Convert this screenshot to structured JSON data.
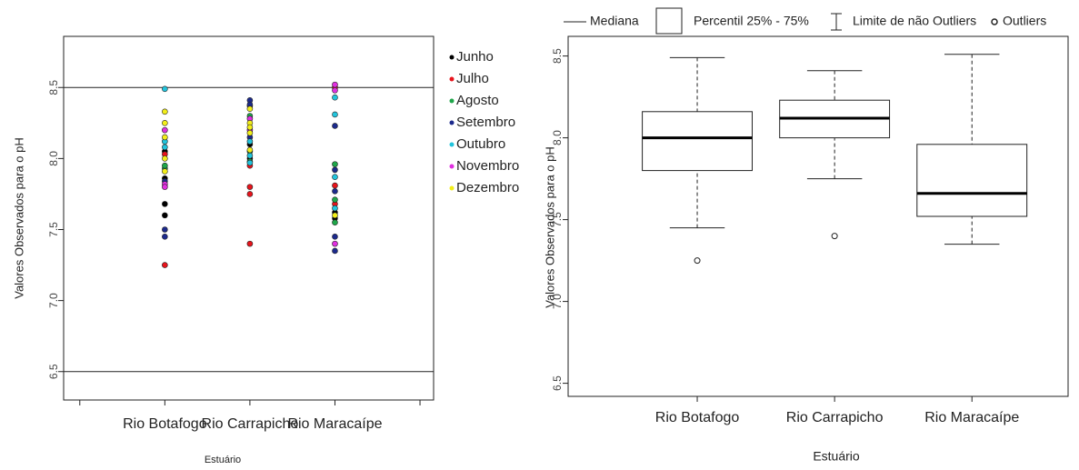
{
  "chart_data": [
    {
      "type": "scatter",
      "ylabel": "Valores Observados para o pH",
      "xlabel": "Estuário",
      "categories": [
        null,
        "Rio Botafogo",
        "Rio Carrapicho",
        "Rio Maracaípe",
        null
      ],
      "xlim": [
        0.81,
        5.16
      ],
      "ylim": [
        6.3,
        8.86
      ],
      "yticks": [
        6.5,
        {
          "value": 7,
          "label": "7.0"
        },
        7.5,
        {
          "value": 8,
          "label": "8.0"
        },
        8.5
      ],
      "hlines": [
        6.5,
        8.5
      ],
      "series": [
        {
          "name": "Junho",
          "color": "#000000",
          "x": [
            "Rio Botafogo",
            "Rio Botafogo",
            "Rio Botafogo",
            "Rio Botafogo",
            "Rio Carrapicho",
            "Rio Carrapicho",
            "Rio Maracaípe",
            "Rio Maracaípe"
          ],
          "values": [
            8.05,
            7.86,
            7.68,
            7.6,
            8.1,
            8.0,
            7.62,
            7.58
          ]
        },
        {
          "name": "Julho",
          "color": "#e8141c",
          "x": [
            "Rio Botafogo",
            "Rio Botafogo",
            "Rio Carrapicho",
            "Rio Carrapicho",
            "Rio Carrapicho",
            "Rio Carrapicho",
            "Rio Carrapicho",
            "Rio Maracaípe",
            "Rio Maracaípe",
            "Rio Maracaípe"
          ],
          "values": [
            7.25,
            8.03,
            7.4,
            7.75,
            7.8,
            7.95,
            8.37,
            8.5,
            7.81,
            7.68
          ]
        },
        {
          "name": "Agosto",
          "color": "#1fa64a",
          "x": [
            "Rio Botafogo",
            "Rio Botafogo",
            "Rio Carrapicho",
            "Rio Carrapicho",
            "Rio Carrapicho",
            "Rio Maracaípe",
            "Rio Maracaípe",
            "Rio Maracaípe"
          ],
          "values": [
            7.93,
            7.95,
            8.3,
            8.05,
            7.98,
            7.96,
            7.71,
            7.55
          ]
        },
        {
          "name": "Setembro",
          "color": "#1c2a8c",
          "x": [
            "Rio Botafogo",
            "Rio Botafogo",
            "Rio Botafogo",
            "Rio Carrapicho",
            "Rio Carrapicho",
            "Rio Carrapicho",
            "Rio Maracaípe",
            "Rio Maracaípe",
            "Rio Maracaípe",
            "Rio Maracaípe",
            "Rio Maracaípe"
          ],
          "values": [
            7.84,
            7.5,
            7.45,
            8.41,
            8.38,
            8.15,
            8.23,
            7.92,
            7.77,
            7.45,
            7.35
          ]
        },
        {
          "name": "Outubro",
          "color": "#22c4dc",
          "x": [
            "Rio Botafogo",
            "Rio Botafogo",
            "Rio Botafogo",
            "Rio Carrapicho",
            "Rio Carrapicho",
            "Rio Carrapicho",
            "Rio Maracaípe",
            "Rio Maracaípe",
            "Rio Maracaípe",
            "Rio Maracaípe"
          ],
          "values": [
            8.49,
            8.12,
            8.08,
            8.12,
            8.02,
            7.97,
            8.43,
            8.31,
            7.87,
            7.65
          ]
        },
        {
          "name": "Novembro",
          "color": "#e030e0",
          "x": [
            "Rio Botafogo",
            "Rio Botafogo",
            "Rio Botafogo",
            "Rio Carrapicho",
            "Rio Carrapicho",
            "Rio Maracaípe",
            "Rio Maracaípe",
            "Rio Maracaípe"
          ],
          "values": [
            8.2,
            7.82,
            7.8,
            8.2,
            8.28,
            8.52,
            8.48,
            7.4
          ]
        },
        {
          "name": "Dezembro",
          "color": "#f2ee1a",
          "x": [
            "Rio Botafogo",
            "Rio Botafogo",
            "Rio Botafogo",
            "Rio Botafogo",
            "Rio Botafogo",
            "Rio Carrapicho",
            "Rio Carrapicho",
            "Rio Carrapicho",
            "Rio Carrapicho",
            "Rio Carrapicho",
            "Rio Maracaípe"
          ],
          "values": [
            8.33,
            8.25,
            8.15,
            8.0,
            7.91,
            8.35,
            8.25,
            8.22,
            8.18,
            8.06,
            7.6
          ]
        }
      ]
    },
    {
      "type": "box",
      "ylabel": "Valores Observados para o pH",
      "xlabel": "Estuário",
      "legend": [
        "Mediana",
        "Percentil 25% - 75%",
        "Limite de não Outliers",
        "Outliers"
      ],
      "categories": [
        "Rio Botafogo",
        "Rio Carrapicho",
        "Rio Maracaípe"
      ],
      "xlim": [
        0.06,
        3.7
      ],
      "ylim": [
        6.42,
        8.62
      ],
      "yticks": [
        6.5,
        {
          "value": 7,
          "label": "7.0"
        },
        7.5,
        {
          "value": 8,
          "label": "8.0"
        },
        8.5
      ],
      "min": [
        7.45,
        7.75,
        7.35
      ],
      "q1": [
        7.8,
        8.0,
        7.52
      ],
      "median": [
        8.0,
        8.12,
        7.66
      ],
      "q3": [
        8.16,
        8.23,
        7.96
      ],
      "max": [
        8.49,
        8.41,
        8.51
      ],
      "outliers": [
        [
          7.25
        ],
        [
          7.4
        ],
        []
      ]
    }
  ]
}
